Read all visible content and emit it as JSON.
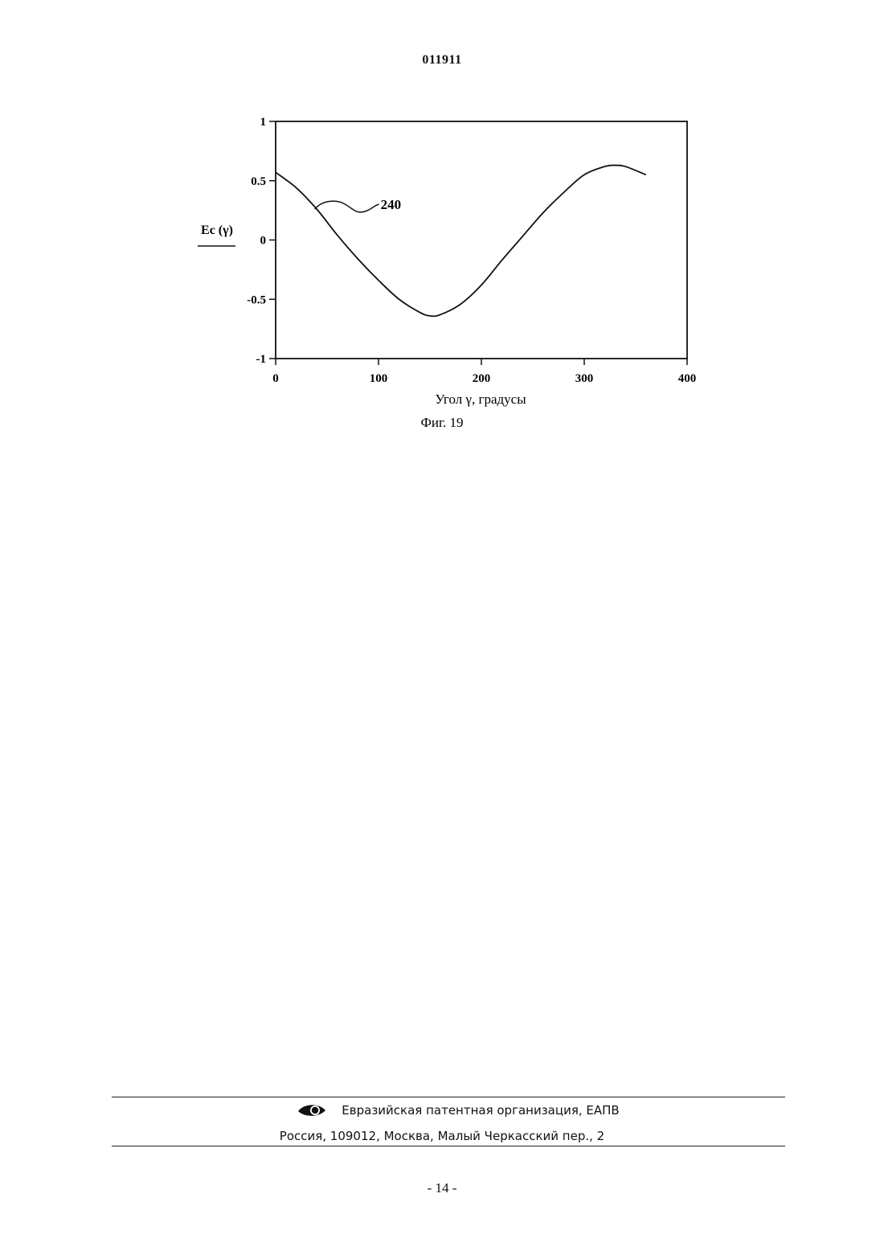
{
  "document": {
    "patent_number": "011911",
    "page_number": "- 14 -"
  },
  "figure": {
    "caption": "Фиг. 19"
  },
  "chart_data": {
    "type": "line",
    "title": "",
    "xlabel": "Угол γ, градусы",
    "ylabel": "Ec (γ)",
    "xlim": [
      0,
      400
    ],
    "ylim": [
      -1,
      1
    ],
    "xticks": [
      0,
      100,
      200,
      300,
      400
    ],
    "yticks": [
      1,
      0.5,
      0,
      -0.5,
      -1
    ],
    "grid": false,
    "series": [
      {
        "name": "",
        "x": [
          0,
          20,
          40,
          60,
          80,
          100,
          120,
          140,
          150,
          160,
          180,
          200,
          220,
          240,
          260,
          280,
          300,
          320,
          330,
          340,
          360
        ],
        "y": [
          0.57,
          0.44,
          0.26,
          0.04,
          -0.16,
          -0.34,
          -0.5,
          -0.61,
          -0.64,
          -0.63,
          -0.54,
          -0.38,
          -0.17,
          0.03,
          0.23,
          0.4,
          0.55,
          0.62,
          0.63,
          0.62,
          0.55
        ]
      }
    ],
    "annotations": [
      {
        "text": "240",
        "points_to": {
          "x": 38,
          "y": 0.26
        }
      }
    ]
  },
  "footer": {
    "org_name": "Евразийская патентная организация, ЕАПВ",
    "address": "Россия, 109012, Москва, Малый Черкасский пер., 2",
    "logo_icon": "eye-logo-icon"
  }
}
